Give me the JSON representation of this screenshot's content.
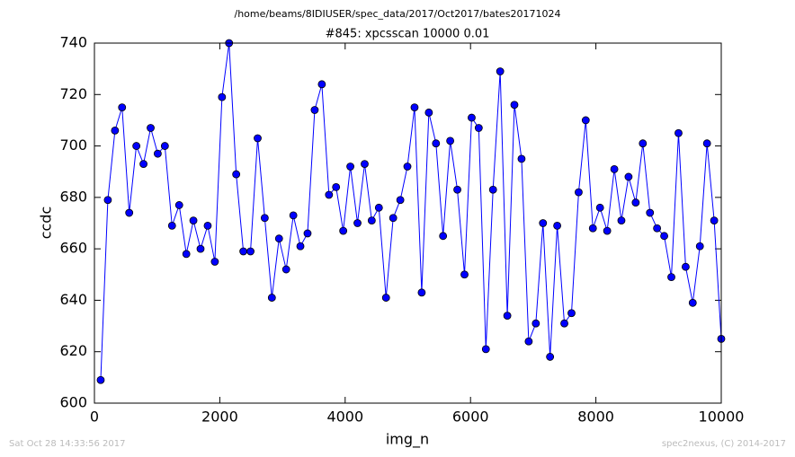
{
  "chart_data": {
    "type": "line",
    "suptitle": "/home/beams/8IDIUSER/spec_data/2017/Oct2017/bates20171024",
    "title": "#845: xpcsscan 10000 0.01",
    "xlabel": "img_n",
    "ylabel": "ccdc",
    "footer_left": "Sat Oct 28 14:33:56 2017",
    "footer_right": "spec2nexus, (C) 2014-2017",
    "x": [
      100,
      214,
      328,
      441,
      555,
      669,
      783,
      897,
      1010,
      1124,
      1238,
      1352,
      1466,
      1579,
      1693,
      1807,
      1921,
      2035,
      2148,
      2262,
      2376,
      2490,
      2604,
      2717,
      2831,
      2945,
      3059,
      3173,
      3286,
      3400,
      3514,
      3628,
      3742,
      3855,
      3969,
      4083,
      4197,
      4311,
      4424,
      4538,
      4652,
      4766,
      4880,
      4993,
      5107,
      5221,
      5335,
      5449,
      5562,
      5676,
      5790,
      5904,
      6018,
      6131,
      6245,
      6359,
      6473,
      6587,
      6700,
      6814,
      6928,
      7042,
      7156,
      7269,
      7383,
      7497,
      7611,
      7725,
      7838,
      7952,
      8066,
      8180,
      8294,
      8407,
      8521,
      8635,
      8749,
      8863,
      8976,
      9090,
      9204,
      9318,
      9432,
      9545,
      9659,
      9773,
      9887,
      10000
    ],
    "series": [
      {
        "color": "#0000ff",
        "values": [
          609,
          679,
          706,
          715,
          674,
          700,
          693,
          707,
          697,
          700,
          669,
          677,
          658,
          671,
          660,
          669,
          655,
          719,
          740,
          689,
          659,
          659,
          703,
          672,
          641,
          664,
          652,
          673,
          661,
          666,
          714,
          724,
          681,
          684,
          667,
          692,
          670,
          693,
          671,
          676,
          641,
          672,
          679,
          692,
          715,
          643,
          713,
          701,
          665,
          702,
          683,
          650,
          711,
          707,
          621,
          683,
          729,
          634,
          716,
          695,
          624,
          631,
          670,
          618,
          669,
          631,
          635,
          682,
          710,
          668,
          676,
          667,
          691,
          671,
          688,
          678,
          701,
          674,
          668,
          665,
          649,
          705,
          653,
          639,
          661,
          701,
          671,
          625
        ]
      }
    ],
    "xlim": [
      0,
      10000
    ],
    "ylim": [
      600,
      740
    ],
    "xticks": [
      0,
      2000,
      4000,
      6000,
      8000,
      10000
    ],
    "yticks": [
      600,
      620,
      640,
      660,
      680,
      700,
      720,
      740
    ]
  }
}
